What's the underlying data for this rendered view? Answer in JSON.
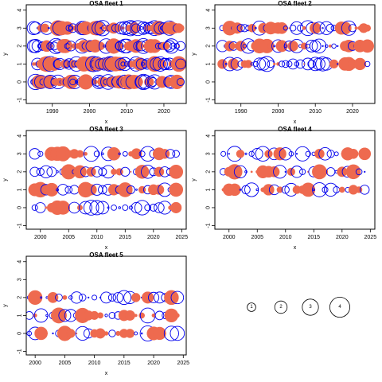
{
  "colors": {
    "positive": "#0000ee",
    "negative": "#ee6a4f",
    "axis": "#000000"
  },
  "legend": {
    "values": [
      1,
      2,
      3,
      4
    ],
    "labels": [
      "1",
      "2",
      "3",
      "4"
    ]
  },
  "chart_data": [
    {
      "type": "scatter",
      "title": "OSA fleet 1",
      "xlabel": "x",
      "ylabel": "y",
      "xlim": [
        1983,
        2026
      ],
      "ylim": [
        -1.2,
        4.3
      ],
      "xticks": [
        1990,
        2000,
        2010,
        2020
      ],
      "yticks": [
        -1,
        0,
        1,
        2,
        3,
        4
      ],
      "years": [
        1985,
        2024
      ],
      "rows": [
        0,
        1,
        2,
        3
      ],
      "grid": false
    },
    {
      "type": "scatter",
      "title": "OSA fleet 2",
      "xlabel": "x",
      "ylabel": "y",
      "xlim": [
        1983,
        2026
      ],
      "ylim": [
        -1.2,
        4.3
      ],
      "xticks": [
        1990,
        2000,
        2010,
        2020
      ],
      "yticks": [
        -1,
        0,
        1,
        2,
        3,
        4
      ],
      "years": [
        1985,
        2024
      ],
      "rows": [
        1,
        2,
        3
      ],
      "grid": false
    },
    {
      "type": "scatter",
      "title": "OSA fleet 3",
      "xlabel": "x",
      "ylabel": "y",
      "xlim": [
        1997.5,
        2025.8
      ],
      "ylim": [
        -1.2,
        4.3
      ],
      "xticks": [
        2000,
        2005,
        2010,
        2015,
        2020,
        2025
      ],
      "yticks": [
        -1,
        0,
        1,
        2,
        3,
        4
      ],
      "years": [
        1999,
        2024
      ],
      "rows": [
        0,
        1,
        2,
        3
      ],
      "grid": false
    },
    {
      "type": "scatter",
      "title": "OSA fleet 4",
      "xlabel": "x",
      "ylabel": "y",
      "xlim": [
        1997.5,
        2025.8
      ],
      "ylim": [
        -1.2,
        4.3
      ],
      "xticks": [
        2000,
        2005,
        2010,
        2015,
        2020,
        2025
      ],
      "yticks": [
        -1,
        0,
        1,
        2,
        3,
        4
      ],
      "years": [
        1999,
        2024
      ],
      "rows": [
        1,
        2,
        3
      ],
      "grid": false
    },
    {
      "type": "scatter",
      "title": "OSA fleet 5",
      "xlabel": "x",
      "ylabel": "y",
      "xlim": [
        1998.5,
        2025.5
      ],
      "ylim": [
        -1.2,
        4.3
      ],
      "xticks": [
        2000,
        2005,
        2010,
        2015,
        2020,
        2025
      ],
      "yticks": [
        -1,
        0,
        1,
        2,
        3,
        4
      ],
      "years": [
        1999,
        2024
      ],
      "rows": [
        0,
        1,
        2
      ],
      "grid": false
    }
  ]
}
